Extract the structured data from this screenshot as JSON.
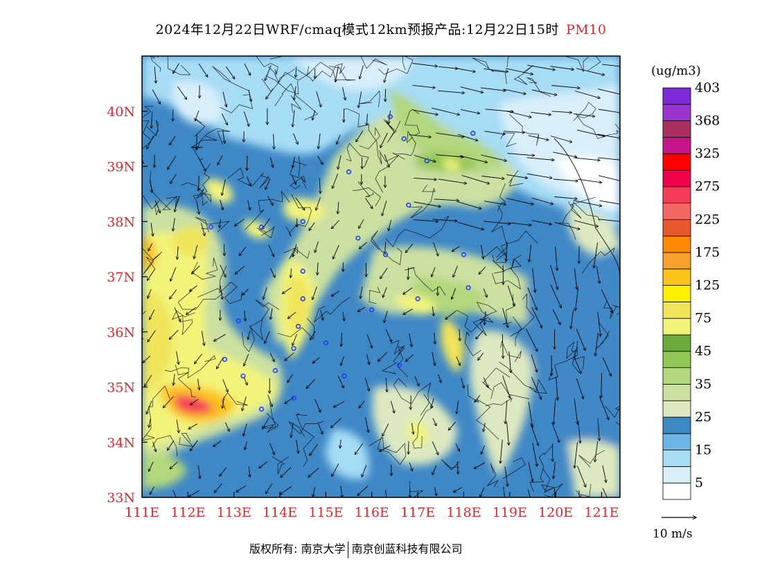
{
  "title": {
    "text": "2024年12月22日WRF/cmaq模式12km预报产品:12月22日15时",
    "pollutant": "PM10"
  },
  "colors": {
    "axis_label": "#e8252b",
    "title_highlight": "#e8252b"
  },
  "map": {
    "lon_range": [
      111,
      121.4
    ],
    "lat_range": [
      33,
      41
    ],
    "lon_ticks": [
      "111E",
      "112E",
      "113E",
      "114E",
      "115E",
      "116E",
      "117E",
      "118E",
      "119E",
      "120E",
      "121E"
    ],
    "lat_ticks": [
      "33N",
      "34N",
      "35N",
      "36N",
      "37N",
      "38N",
      "39N",
      "40N"
    ]
  },
  "legend": {
    "unit": "(ug/m3)",
    "bins": [
      {
        "color": "#ffffff"
      },
      {
        "color": "#d8effa"
      },
      {
        "color": "#a6dcf4"
      },
      {
        "color": "#6cb6e6"
      },
      {
        "color": "#3f88c6"
      },
      {
        "color": "#dde8c0"
      },
      {
        "color": "#cbe0a1"
      },
      {
        "color": "#b2d77c"
      },
      {
        "color": "#92c655"
      },
      {
        "color": "#6aab3a"
      },
      {
        "color": "#f2f47a"
      },
      {
        "color": "#f0e45a"
      },
      {
        "color": "#ffef00"
      },
      {
        "color": "#fcc418"
      },
      {
        "color": "#f8a12d"
      },
      {
        "color": "#ff8a00"
      },
      {
        "color": "#e8582e"
      },
      {
        "color": "#f26663"
      },
      {
        "color": "#f53a5a"
      },
      {
        "color": "#f0004a"
      },
      {
        "color": "#ff0000"
      },
      {
        "color": "#c8148c"
      },
      {
        "color": "#aa2e5e"
      },
      {
        "color": "#9b35d0"
      },
      {
        "color": "#7e2ad8"
      }
    ],
    "labels": [
      {
        "text": "5",
        "bin": 1
      },
      {
        "text": "15",
        "bin": 3
      },
      {
        "text": "25",
        "bin": 5
      },
      {
        "text": "35",
        "bin": 7
      },
      {
        "text": "45",
        "bin": 9
      },
      {
        "text": "75",
        "bin": 11
      },
      {
        "text": "125",
        "bin": 13
      },
      {
        "text": "175",
        "bin": 15
      },
      {
        "text": "225",
        "bin": 17
      },
      {
        "text": "275",
        "bin": 19
      },
      {
        "text": "325",
        "bin": 21
      },
      {
        "text": "368",
        "bin": 23
      },
      {
        "text": "403",
        "bin": 25
      }
    ]
  },
  "vector_legend": {
    "label": "10 m/s"
  },
  "copyright": {
    "left": "版权所有: 南京大学",
    "right": "南京创蓝科技有限公司"
  },
  "stations": [
    {
      "lon": 116.4,
      "lat": 39.9
    },
    {
      "lon": 117.2,
      "lat": 39.1
    },
    {
      "lon": 116.7,
      "lat": 39.5
    },
    {
      "lon": 118.2,
      "lat": 39.6
    },
    {
      "lon": 115.5,
      "lat": 38.9
    },
    {
      "lon": 116.8,
      "lat": 38.3
    },
    {
      "lon": 114.5,
      "lat": 38.0
    },
    {
      "lon": 113.6,
      "lat": 37.9
    },
    {
      "lon": 112.5,
      "lat": 37.9
    },
    {
      "lon": 115.7,
      "lat": 37.7
    },
    {
      "lon": 116.3,
      "lat": 37.4
    },
    {
      "lon": 118.0,
      "lat": 37.4
    },
    {
      "lon": 118.1,
      "lat": 36.8
    },
    {
      "lon": 117.0,
      "lat": 36.6
    },
    {
      "lon": 116.0,
      "lat": 36.4
    },
    {
      "lon": 114.5,
      "lat": 37.1
    },
    {
      "lon": 114.5,
      "lat": 36.6
    },
    {
      "lon": 114.4,
      "lat": 36.1
    },
    {
      "lon": 113.1,
      "lat": 36.2
    },
    {
      "lon": 114.3,
      "lat": 35.7
    },
    {
      "lon": 115.0,
      "lat": 35.8
    },
    {
      "lon": 112.8,
      "lat": 35.5
    },
    {
      "lon": 113.9,
      "lat": 35.3
    },
    {
      "lon": 113.2,
      "lat": 35.2
    },
    {
      "lon": 115.4,
      "lat": 35.2
    },
    {
      "lon": 116.6,
      "lat": 35.4
    },
    {
      "lon": 114.3,
      "lat": 34.8
    },
    {
      "lon": 113.6,
      "lat": 34.6
    }
  ]
}
